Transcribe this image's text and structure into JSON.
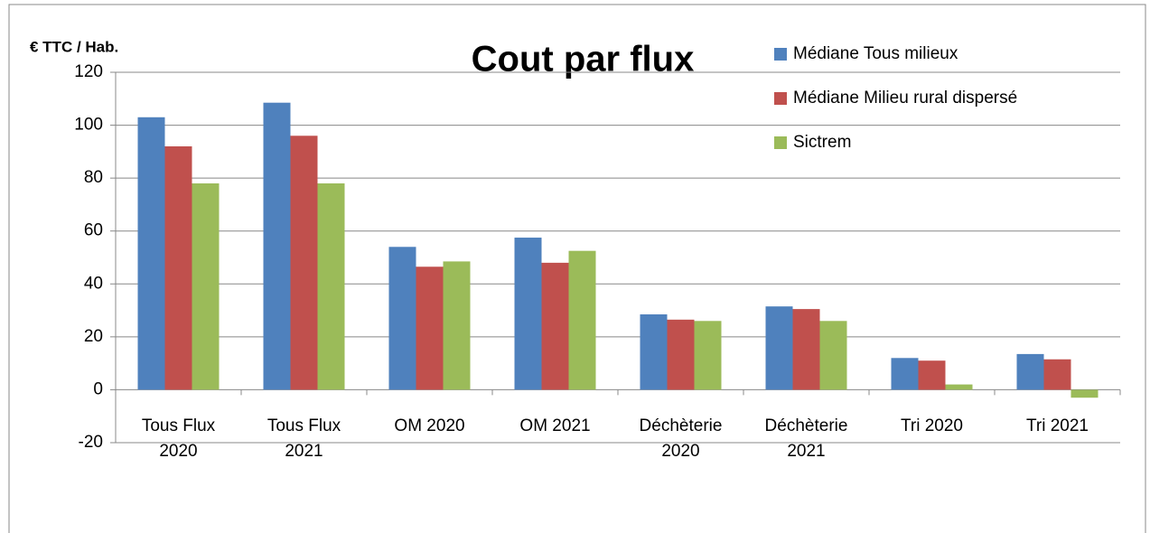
{
  "chart_data": {
    "type": "bar",
    "title": "Cout par flux",
    "y_label": "€ TTC / Hab.",
    "categories": [
      "Tous Flux 2020",
      "Tous Flux 2021",
      "OM 2020",
      "OM 2021",
      "Déchèterie 2020",
      "Déchèterie 2021",
      "Tri 2020",
      "Tri 2021"
    ],
    "series": [
      {
        "name": "Médiane Tous milieux",
        "color": "#4f81bd",
        "values": [
          103,
          108.5,
          54,
          57.5,
          28.5,
          31.5,
          12,
          13.5
        ]
      },
      {
        "name": "Médiane Milieu rural dispersé",
        "color": "#c0504d",
        "values": [
          92,
          96,
          46.5,
          48,
          26.5,
          30.5,
          11,
          11.5
        ]
      },
      {
        "name": "Sictrem",
        "color": "#9bbb59",
        "values": [
          78,
          78,
          48.5,
          52.5,
          26,
          26,
          2,
          -3
        ]
      }
    ],
    "ylim": [
      -20,
      120
    ],
    "yticks": [
      -20,
      0,
      20,
      40,
      60,
      80,
      100,
      120
    ],
    "grid": true,
    "legend": "top-right"
  }
}
